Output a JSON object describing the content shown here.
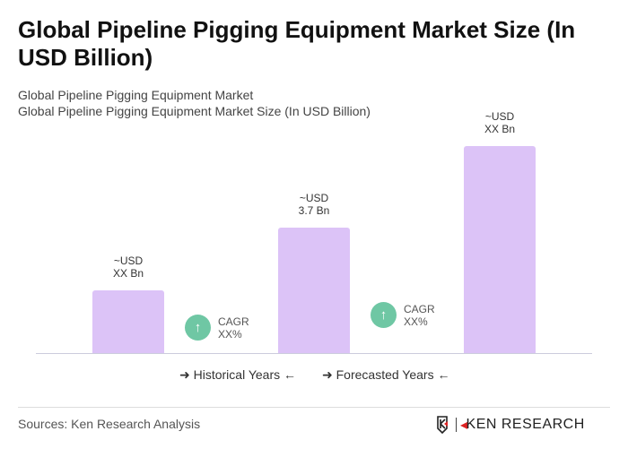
{
  "title": "Global Pipeline Pigging Equipment Market Size (In USD Billion)",
  "subtitle1": "Global Pipeline Pigging Equipment Market",
  "subtitle2": "Global Pipeline Pigging Equipment Market Size (In USD Billion)",
  "chart_data": {
    "type": "bar",
    "values": [
      1.85,
      3.7,
      6.1
    ],
    "labels": [
      [
        "~USD",
        "XX Bn"
      ],
      [
        "~USD",
        "3.7 Bn"
      ],
      [
        "~USD",
        "XX Bn"
      ]
    ],
    "cagr": [
      {
        "label": "CAGR",
        "value": "XX%"
      },
      {
        "label": "CAGR",
        "value": "XX%"
      }
    ],
    "legend": [
      "Historical Years",
      "Forecasted Years"
    ],
    "bar_color": "#dcc3f7",
    "cagr_color": "#6fc7a4"
  },
  "sources": "Sources: Ken Research Analysis",
  "logo": "KEN RESEARCH"
}
